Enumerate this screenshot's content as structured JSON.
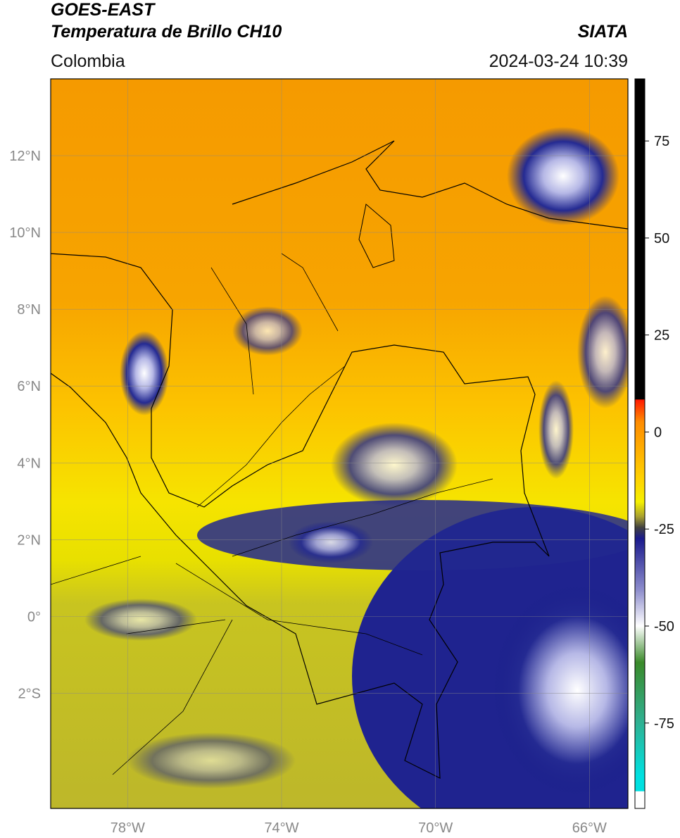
{
  "header": {
    "title": "GOES-EAST",
    "subtitle": "Temperatura de Brillo CH10",
    "region": "Colombia",
    "source": "SIATA",
    "timestamp": "2024-03-24 10:39"
  },
  "map": {
    "xlim": [
      -80,
      -65
    ],
    "ylim": [
      -5,
      14
    ],
    "lat_ticks": [
      {
        "value": 12,
        "label": "12°N"
      },
      {
        "value": 10,
        "label": "10°N"
      },
      {
        "value": 8,
        "label": "8°N"
      },
      {
        "value": 6,
        "label": "6°N"
      },
      {
        "value": 4,
        "label": "4°N"
      },
      {
        "value": 2,
        "label": "2°N"
      },
      {
        "value": 0,
        "label": "0°"
      },
      {
        "value": -2,
        "label": "2°S"
      }
    ],
    "lon_ticks": [
      {
        "value": -78,
        "label": "78°W"
      },
      {
        "value": -74,
        "label": "74°W"
      },
      {
        "value": -70,
        "label": "70°W"
      },
      {
        "value": -66,
        "label": "66°W"
      }
    ]
  },
  "colorbar": {
    "lim": [
      -97,
      91
    ],
    "ticks": [
      75,
      50,
      25,
      0,
      -25,
      -50,
      -75
    ]
  }
}
